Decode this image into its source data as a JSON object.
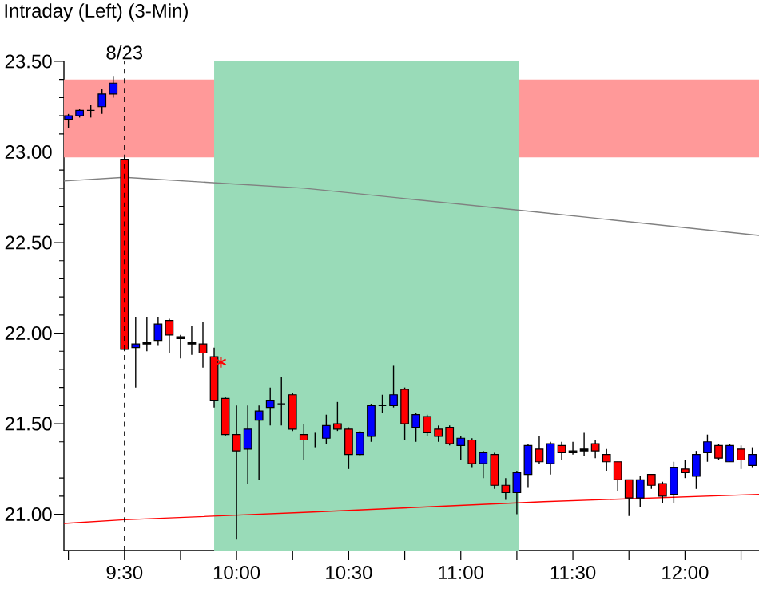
{
  "chart_data": {
    "type": "candlestick",
    "title": "Intraday   (Left)   (3-Min)",
    "x": [
      9.25,
      9.3,
      9.35,
      9.4,
      9.45,
      9.5,
      9.55,
      9.6,
      9.65,
      9.7,
      9.75,
      9.8,
      9.85,
      9.9,
      9.95,
      10.0,
      10.05,
      10.1,
      10.15,
      10.2,
      10.25,
      10.3,
      10.35,
      10.4,
      10.45,
      10.5,
      10.55,
      10.6,
      10.65,
      10.7,
      10.75,
      10.8,
      10.85,
      10.9,
      10.95,
      11.0,
      11.05,
      11.1,
      11.15,
      11.2,
      11.25,
      11.3,
      11.35,
      11.4,
      11.45,
      11.5,
      11.55,
      11.6,
      11.65,
      11.7,
      11.75,
      11.8,
      11.85,
      11.9,
      11.95,
      12.0,
      12.05,
      12.1,
      12.15,
      12.2,
      12.25,
      12.3
    ],
    "ohlc": [
      [
        23.18,
        23.21,
        23.13,
        23.2
      ],
      [
        23.2,
        23.24,
        23.19,
        23.23
      ],
      [
        23.23,
        23.26,
        23.19,
        23.23
      ],
      [
        23.25,
        23.35,
        23.21,
        23.32
      ],
      [
        23.32,
        23.42,
        23.3,
        23.38
      ],
      [
        22.96,
        22.97,
        21.9,
        21.91
      ],
      [
        21.92,
        22.09,
        21.7,
        21.94
      ],
      [
        21.94,
        22.09,
        21.9,
        21.95
      ],
      [
        21.96,
        22.09,
        21.93,
        22.05
      ],
      [
        22.07,
        22.08,
        21.89,
        21.99
      ],
      [
        21.98,
        21.99,
        21.86,
        21.97
      ],
      [
        21.95,
        22.04,
        21.88,
        21.94
      ],
      [
        21.94,
        22.06,
        21.81,
        21.89
      ],
      [
        21.87,
        21.92,
        21.59,
        21.63
      ],
      [
        21.64,
        21.65,
        21.43,
        21.44
      ],
      [
        21.44,
        21.6,
        20.86,
        21.35
      ],
      [
        21.36,
        21.6,
        21.17,
        21.47
      ],
      [
        21.52,
        21.6,
        21.19,
        21.57
      ],
      [
        21.59,
        21.7,
        21.49,
        21.63
      ],
      [
        21.61,
        21.76,
        21.49,
        21.61
      ],
      [
        21.66,
        21.67,
        21.46,
        21.47
      ],
      [
        21.44,
        21.5,
        21.3,
        21.41
      ],
      [
        21.41,
        21.45,
        21.37,
        21.41
      ],
      [
        21.42,
        21.55,
        21.39,
        21.49
      ],
      [
        21.5,
        21.62,
        21.46,
        21.47
      ],
      [
        21.47,
        21.48,
        21.25,
        21.33
      ],
      [
        21.33,
        21.46,
        21.32,
        21.45
      ],
      [
        21.43,
        21.61,
        21.4,
        21.6
      ],
      [
        21.6,
        21.66,
        21.56,
        21.6
      ],
      [
        21.6,
        21.82,
        21.59,
        21.66
      ],
      [
        21.69,
        21.7,
        21.41,
        21.5
      ],
      [
        21.48,
        21.56,
        21.4,
        21.55
      ],
      [
        21.54,
        21.55,
        21.43,
        21.45
      ],
      [
        21.47,
        21.49,
        21.4,
        21.43
      ],
      [
        21.48,
        21.49,
        21.38,
        21.39
      ],
      [
        21.38,
        21.43,
        21.3,
        21.42
      ],
      [
        21.41,
        21.42,
        21.26,
        21.28
      ],
      [
        21.28,
        21.35,
        21.2,
        21.34
      ],
      [
        21.33,
        21.34,
        21.14,
        21.16
      ],
      [
        21.16,
        21.2,
        21.08,
        21.12
      ],
      [
        21.12,
        21.24,
        21.0,
        21.23
      ],
      [
        21.22,
        21.39,
        21.15,
        21.38
      ],
      [
        21.36,
        21.43,
        21.28,
        21.29
      ],
      [
        21.28,
        21.4,
        21.22,
        21.39
      ],
      [
        21.38,
        21.4,
        21.3,
        21.34
      ],
      [
        21.35,
        21.4,
        21.33,
        21.34
      ],
      [
        21.35,
        21.45,
        21.32,
        21.36
      ],
      [
        21.39,
        21.41,
        21.31,
        21.35
      ],
      [
        21.33,
        21.36,
        21.24,
        21.29
      ],
      [
        21.29,
        21.29,
        21.13,
        21.19
      ],
      [
        21.19,
        21.19,
        20.99,
        21.09
      ],
      [
        21.09,
        21.21,
        21.04,
        21.19
      ],
      [
        21.22,
        21.22,
        21.14,
        21.16
      ],
      [
        21.17,
        21.18,
        21.06,
        21.1
      ],
      [
        21.11,
        21.29,
        21.06,
        21.26
      ],
      [
        21.25,
        21.3,
        21.2,
        21.23
      ],
      [
        21.21,
        21.35,
        21.14,
        21.33
      ],
      [
        21.34,
        21.44,
        21.29,
        21.4
      ],
      [
        21.38,
        21.39,
        21.3,
        21.31
      ],
      [
        21.29,
        21.39,
        21.29,
        21.38
      ],
      [
        21.36,
        21.38,
        21.25,
        21.3
      ],
      [
        21.27,
        21.37,
        21.26,
        21.33
      ]
    ],
    "colors": [
      "#0000ff",
      "#0000ff",
      "#000000",
      "#0000ff",
      "#0000ff",
      "#ff0000",
      "#0000ff",
      "#000000",
      "#0000ff",
      "#ff0000",
      "#000000",
      "#000000",
      "#ff0000",
      "#ff0000",
      "#ff0000",
      "#ff0000",
      "#0000ff",
      "#0000ff",
      "#0000ff",
      "#000000",
      "#ff0000",
      "#ff0000",
      "#000000",
      "#0000ff",
      "#ff0000",
      "#ff0000",
      "#0000ff",
      "#0000ff",
      "#000000",
      "#0000ff",
      "#ff0000",
      "#0000ff",
      "#ff0000",
      "#ff0000",
      "#ff0000",
      "#0000ff",
      "#ff0000",
      "#0000ff",
      "#ff0000",
      "#ff0000",
      "#0000ff",
      "#0000ff",
      "#ff0000",
      "#0000ff",
      "#ff0000",
      "#000000",
      "#000000",
      "#ff0000",
      "#ff0000",
      "#ff0000",
      "#ff0000",
      "#0000ff",
      "#ff0000",
      "#ff0000",
      "#0000ff",
      "#ff0000",
      "#0000ff",
      "#0000ff",
      "#ff0000",
      "#0000ff",
      "#ff0000",
      "#0000ff"
    ],
    "series": [
      {
        "type": "line",
        "color": "#808080",
        "x": [
          9.23,
          9.5,
          10.3,
          11.33,
          12.33
        ],
        "values": [
          22.84,
          22.86,
          22.8,
          22.67,
          22.54
        ]
      },
      {
        "type": "line",
        "color": "#ff0000",
        "x": [
          9.23,
          9.5,
          10.3,
          11.37,
          12.33
        ],
        "values": [
          20.95,
          20.97,
          21.01,
          21.07,
          21.11
        ]
      },
      {
        "type": "scatter",
        "color": "#ff0000",
        "marker": "cross",
        "x": [
          9.93
        ],
        "values": [
          21.84
        ]
      }
    ],
    "bands": [
      {
        "axis": "y",
        "from": 22.97,
        "to": 23.4,
        "color": "#ff9999"
      },
      {
        "axis": "x",
        "from": 9.9,
        "to": 11.26,
        "color": "#99dbb8"
      }
    ],
    "ref_lines": [
      {
        "axis": "x",
        "value": 9.5,
        "line_style": "dashed"
      }
    ],
    "annotations": [
      {
        "text": "8/23",
        "x": 9.5,
        "y": 23.5
      }
    ],
    "xlim": [
      9.23,
      12.33
    ],
    "ylim": [
      20.8,
      23.5
    ],
    "xticks": [
      {
        "value": 9.25,
        "label": null
      },
      {
        "value": 9.5,
        "label": "9:30"
      },
      {
        "value": 9.75,
        "label": null
      },
      {
        "value": 10,
        "label": "10:00"
      },
      {
        "value": 10.25,
        "label": null
      },
      {
        "value": 10.5,
        "label": "10:30"
      },
      {
        "value": 10.75,
        "label": null
      },
      {
        "value": 11,
        "label": "11:00"
      },
      {
        "value": 11.25,
        "label": null
      },
      {
        "value": 11.5,
        "label": "11:30"
      },
      {
        "value": 11.75,
        "label": null
      },
      {
        "value": 12,
        "label": "12:00"
      },
      {
        "value": 12.25,
        "label": null
      }
    ],
    "yticks": [
      {
        "value": 21,
        "label": "21.00"
      },
      {
        "value": 21.5,
        "label": "21.50"
      },
      {
        "value": 22,
        "label": "22.00"
      },
      {
        "value": 22.5,
        "label": "22.50"
      },
      {
        "value": 23,
        "label": "23.00"
      },
      {
        "value": 23.5,
        "label": "23.50"
      }
    ]
  }
}
